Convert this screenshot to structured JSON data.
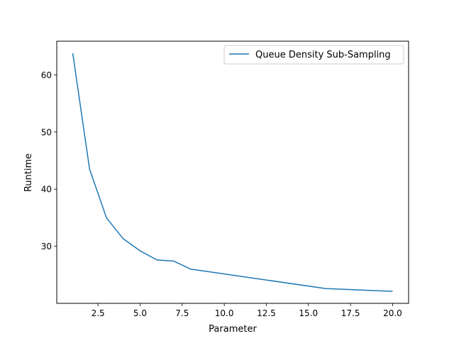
{
  "chart_data": {
    "type": "line",
    "title": "",
    "xlabel": "Parameter",
    "ylabel": "Runtime",
    "xlim": [
      0.05,
      20.95
    ],
    "ylim": [
      20.0,
      65.9
    ],
    "x_ticks": [
      2.5,
      5.0,
      7.5,
      10.0,
      12.5,
      15.0,
      17.5,
      20.0
    ],
    "x_tick_labels": [
      "2.5",
      "5.0",
      "7.5",
      "10.0",
      "12.5",
      "15.0",
      "17.5",
      "20.0"
    ],
    "y_ticks": [
      30,
      40,
      50,
      60
    ],
    "y_tick_labels": [
      "30",
      "40",
      "50",
      "60"
    ],
    "grid": false,
    "legend_position": "top-right",
    "series": [
      {
        "name": "Queue Density Sub-Sampling",
        "color": "#1f77b4",
        "x": [
          1,
          2,
          3,
          4,
          5,
          6,
          7,
          8,
          16,
          20
        ],
        "y": [
          63.8,
          43.5,
          35.0,
          31.3,
          29.2,
          27.6,
          27.4,
          26.0,
          22.6,
          22.1
        ]
      }
    ]
  }
}
